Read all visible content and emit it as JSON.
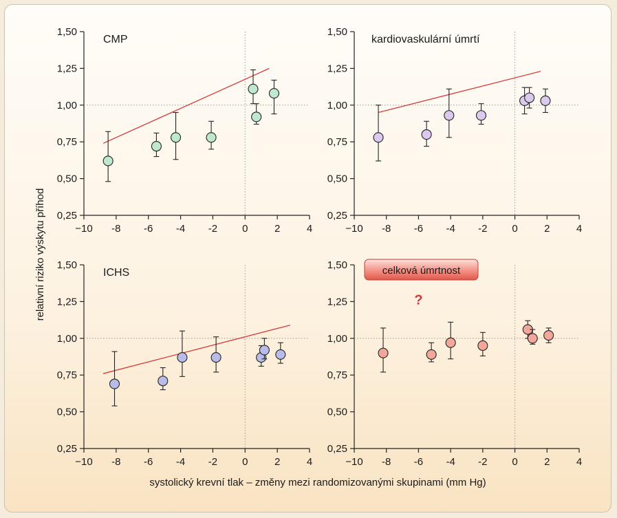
{
  "chart_data": [
    {
      "type": "scatter",
      "title": "CMP",
      "xlim": [
        -10,
        4
      ],
      "ylim": [
        0.25,
        1.5
      ],
      "x_ticks": [
        "−10",
        "-8",
        "-6",
        "-4",
        "-2",
        "0",
        "2",
        "4"
      ],
      "y_ticks": [
        "0,25",
        "0,50",
        "0,75",
        "1,00",
        "1,25",
        "1,50"
      ],
      "marker_color": "#bfe8cf",
      "points": [
        {
          "x": -8.5,
          "y": 0.62,
          "low": 0.48,
          "high": 0.82
        },
        {
          "x": -5.5,
          "y": 0.72,
          "low": 0.65,
          "high": 0.81
        },
        {
          "x": -4.3,
          "y": 0.78,
          "low": 0.63,
          "high": 0.95
        },
        {
          "x": -2.1,
          "y": 0.78,
          "low": 0.7,
          "high": 0.89
        },
        {
          "x": 0.5,
          "y": 1.11,
          "low": 1.01,
          "high": 1.24
        },
        {
          "x": 0.7,
          "y": 0.92,
          "low": 0.87,
          "high": 1.01
        },
        {
          "x": 1.8,
          "y": 1.08,
          "low": 0.94,
          "high": 1.17
        }
      ],
      "trend": {
        "x": [
          -8.8,
          1.5
        ],
        "y": [
          0.74,
          1.25
        ]
      }
    },
    {
      "type": "scatter",
      "title": "kardiovaskulární úmrtí",
      "xlim": [
        -10,
        4
      ],
      "ylim": [
        0.25,
        1.5
      ],
      "x_ticks": [
        "−10",
        "-8",
        "-6",
        "-4",
        "-2",
        "0",
        "2",
        "4"
      ],
      "y_ticks": [
        "0,25",
        "0,50",
        "0,75",
        "1,00",
        "1,25",
        "1,50"
      ],
      "marker_color": "#dcc9ef",
      "points": [
        {
          "x": -8.5,
          "y": 0.78,
          "low": 0.62,
          "high": 1.0
        },
        {
          "x": -5.5,
          "y": 0.8,
          "low": 0.72,
          "high": 0.89
        },
        {
          "x": -4.1,
          "y": 0.93,
          "low": 0.78,
          "high": 1.11
        },
        {
          "x": -2.1,
          "y": 0.93,
          "low": 0.87,
          "high": 1.01
        },
        {
          "x": 0.6,
          "y": 1.03,
          "low": 0.94,
          "high": 1.12
        },
        {
          "x": 0.9,
          "y": 1.05,
          "low": 0.98,
          "high": 1.12
        },
        {
          "x": 1.9,
          "y": 1.03,
          "low": 0.95,
          "high": 1.11
        }
      ],
      "trend": {
        "x": [
          -8.5,
          1.6
        ],
        "y": [
          0.95,
          1.23
        ]
      }
    },
    {
      "type": "scatter",
      "title": "ICHS",
      "xlim": [
        -10,
        4
      ],
      "ylim": [
        0.25,
        1.5
      ],
      "x_ticks": [
        "−10",
        "-8",
        "-6",
        "-4",
        "-2",
        "0",
        "2",
        "4"
      ],
      "y_ticks": [
        "0,25",
        "0,50",
        "0,75",
        "1,00",
        "1,25",
        "1,50"
      ],
      "marker_color": "#b9bce8",
      "points": [
        {
          "x": -8.1,
          "y": 0.69,
          "low": 0.54,
          "high": 0.91
        },
        {
          "x": -5.1,
          "y": 0.71,
          "low": 0.65,
          "high": 0.8
        },
        {
          "x": -3.9,
          "y": 0.87,
          "low": 0.74,
          "high": 1.05
        },
        {
          "x": -1.8,
          "y": 0.87,
          "low": 0.77,
          "high": 1.01
        },
        {
          "x": 1.0,
          "y": 0.87,
          "low": 0.81,
          "high": 0.95
        },
        {
          "x": 1.2,
          "y": 0.92,
          "low": 0.86,
          "high": 1.0
        },
        {
          "x": 2.2,
          "y": 0.89,
          "low": 0.83,
          "high": 0.97
        }
      ],
      "trend": {
        "x": [
          -8.8,
          2.8
        ],
        "y": [
          0.76,
          1.09
        ]
      }
    },
    {
      "type": "scatter",
      "title": "celková úmrtnost",
      "annotation": "?",
      "xlim": [
        -10,
        4
      ],
      "ylim": [
        0.25,
        1.5
      ],
      "x_ticks": [
        "−10",
        "-8",
        "-6",
        "-4",
        "-2",
        "0",
        "2",
        "4"
      ],
      "y_ticks": [
        "0,25",
        "0,50",
        "0,75",
        "1,00",
        "1,25",
        "1,50"
      ],
      "marker_color": "#f2a79a",
      "points": [
        {
          "x": -8.2,
          "y": 0.9,
          "low": 0.77,
          "high": 1.07
        },
        {
          "x": -5.2,
          "y": 0.89,
          "low": 0.84,
          "high": 0.97
        },
        {
          "x": -4.0,
          "y": 0.97,
          "low": 0.86,
          "high": 1.11
        },
        {
          "x": -2.0,
          "y": 0.95,
          "low": 0.88,
          "high": 1.04
        },
        {
          "x": 0.8,
          "y": 1.06,
          "low": 1.0,
          "high": 1.12
        },
        {
          "x": 1.1,
          "y": 1.0,
          "low": 0.96,
          "high": 1.06
        },
        {
          "x": 2.1,
          "y": 1.02,
          "low": 0.97,
          "high": 1.07
        }
      ],
      "trend": null
    }
  ],
  "shared": {
    "xlabel": "systolický krevní tlak – změny mezi randomizovanými skupinami (mm Hg)",
    "ylabel": "relativní riziko výskytu příhod",
    "trend_color": "#d33a3a",
    "reference_line_color": "#9a9a9a",
    "badge_color": "#e25a52",
    "annotation_color": "#d0383a"
  }
}
